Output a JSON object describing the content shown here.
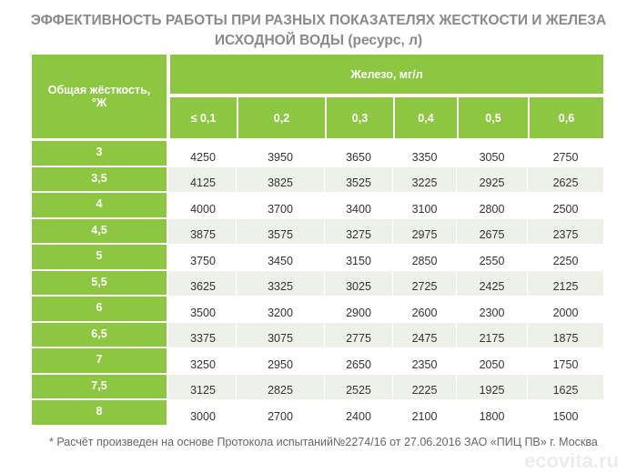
{
  "title_line1": "ЭФФЕКТИВНОСТЬ РАБОТЫ ПРИ РАЗНЫХ ПОКАЗАТЕЛЯХ ЖЕСТКОСТИ И ЖЕЛЕЗА",
  "title_line2": "ИСХОДНОЙ ВОДЫ (ресурс, л)",
  "row_header": "Общая жёсткость, °Ж",
  "column_group_header": "Железо, мг/л",
  "columns": [
    "≤ 0,1",
    "0,2",
    "0,3",
    "0,4",
    "0,5",
    "0,6"
  ],
  "rows": [
    {
      "hardness": "3",
      "values": [
        "4250",
        "3950",
        "3650",
        "3350",
        "3050",
        "2750"
      ]
    },
    {
      "hardness": "3,5",
      "values": [
        "4125",
        "3825",
        "3525",
        "3225",
        "2925",
        "2625"
      ]
    },
    {
      "hardness": "4",
      "values": [
        "4000",
        "3700",
        "3400",
        "3100",
        "2800",
        "2500"
      ]
    },
    {
      "hardness": "4,5",
      "values": [
        "3875",
        "3575",
        "3275",
        "2975",
        "2675",
        "2375"
      ]
    },
    {
      "hardness": "5",
      "values": [
        "3750",
        "3450",
        "3150",
        "2850",
        "2550",
        "2250"
      ]
    },
    {
      "hardness": "5,5",
      "values": [
        "3625",
        "3325",
        "3025",
        "2725",
        "2425",
        "2125"
      ]
    },
    {
      "hardness": "6",
      "values": [
        "3500",
        "3200",
        "2900",
        "2600",
        "2300",
        "2000"
      ]
    },
    {
      "hardness": "6,5",
      "values": [
        "3375",
        "3075",
        "2775",
        "2475",
        "2175",
        "1875"
      ]
    },
    {
      "hardness": "7",
      "values": [
        "3250",
        "2950",
        "2650",
        "2350",
        "2050",
        "1750"
      ]
    },
    {
      "hardness": "7,5",
      "values": [
        "3125",
        "2825",
        "2525",
        "2225",
        "1925",
        "1625"
      ]
    },
    {
      "hardness": "8",
      "values": [
        "3000",
        "2700",
        "2400",
        "2100",
        "1800",
        "1500"
      ]
    }
  ],
  "footnote": "* Расчёт произведен на основе Протокола испытаний№2274/16 от 27.06.2016 ЗАО «ПИЦ ПВ» г. Москва",
  "watermark": "ecovita.ru",
  "colors": {
    "header_green": "#8dc641",
    "stripe": "#eef0ea"
  }
}
